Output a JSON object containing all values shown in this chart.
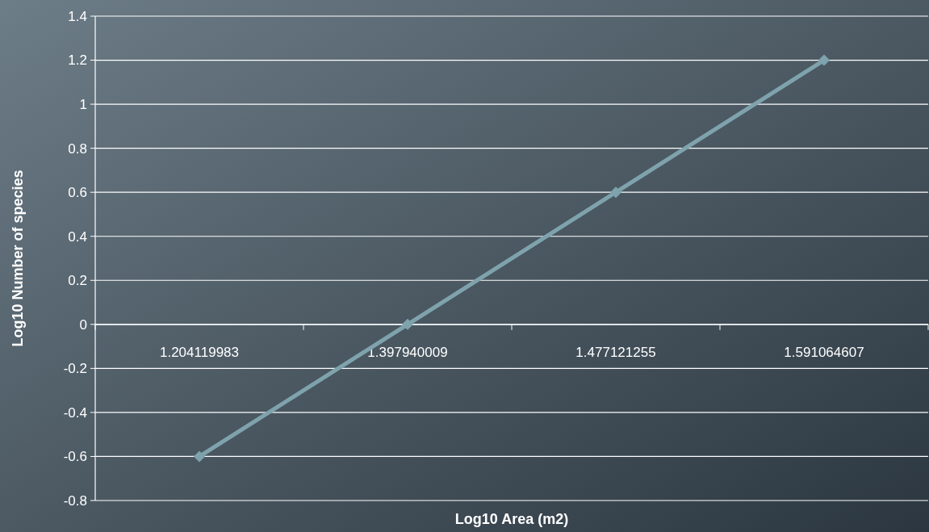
{
  "chart_data": {
    "type": "line",
    "xlabel": "Log10 Area (m2)",
    "ylabel": "Log10 Number of species",
    "categories": [
      "1.204119983",
      "1.397940009",
      "1.477121255",
      "1.591064607"
    ],
    "series": [
      {
        "color": "#7fa3ad",
        "values": [
          -0.6,
          0,
          0.6,
          1.2
        ]
      }
    ],
    "ylim": [
      -0.8,
      1.4
    ],
    "yticks": [
      -0.8,
      -0.6,
      -0.4,
      -0.2,
      0,
      0.2,
      0.4,
      0.6,
      0.8,
      1,
      1.2,
      1.4
    ],
    "grid": "y",
    "marker": "diamond",
    "line_style": "solid"
  }
}
